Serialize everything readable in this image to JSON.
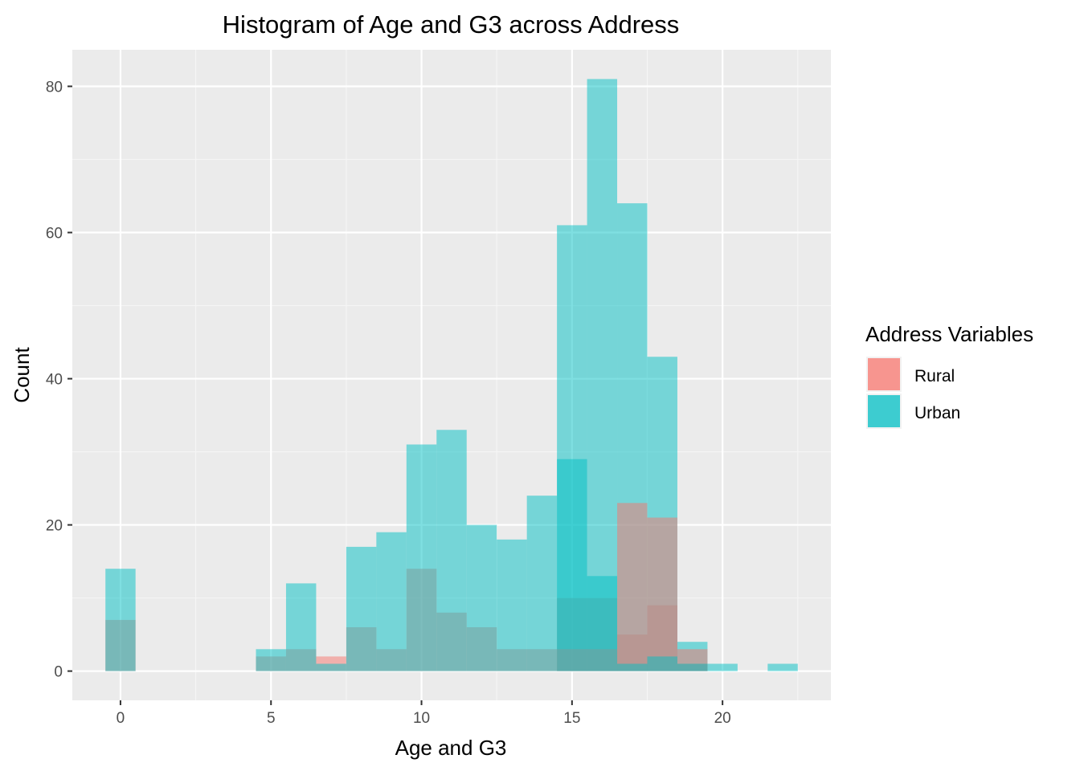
{
  "chart_data": {
    "type": "histogram",
    "title": "Histogram of Age and G3 across Address",
    "xlabel": "Age and G3",
    "ylabel": "Count",
    "bin_width": 1,
    "xlim": [
      -1.6,
      23.6
    ],
    "ylim": [
      -4,
      85
    ],
    "x_ticks": [
      0,
      5,
      10,
      15,
      20
    ],
    "y_ticks": [
      0,
      20,
      40,
      60,
      80
    ],
    "grid": true,
    "legend": {
      "title": "Address Variables",
      "position": "right"
    },
    "colors": {
      "panel_bg": "#EBEBEB",
      "grid_major": "#FFFFFF",
      "grid_minor": "#F5F5F5",
      "rural": "#F8766D",
      "urban": "#00BFC4"
    },
    "layers": [
      {
        "label": "Rural",
        "variable": "G3",
        "color": "#F8766D",
        "bins": [
          {
            "x": 0,
            "count": 7
          },
          {
            "x": 5,
            "count": 2
          },
          {
            "x": 6,
            "count": 3
          },
          {
            "x": 7,
            "count": 2
          },
          {
            "x": 8,
            "count": 6
          },
          {
            "x": 9,
            "count": 3
          },
          {
            "x": 10,
            "count": 14
          },
          {
            "x": 11,
            "count": 8
          },
          {
            "x": 12,
            "count": 6
          },
          {
            "x": 13,
            "count": 3
          },
          {
            "x": 14,
            "count": 3
          },
          {
            "x": 15,
            "count": 10
          },
          {
            "x": 16,
            "count": 10
          },
          {
            "x": 17,
            "count": 5
          },
          {
            "x": 18,
            "count": 9
          },
          {
            "x": 19,
            "count": 1
          }
        ]
      },
      {
        "label": "Urban",
        "variable": "G3",
        "color": "#00BFC4",
        "bins": [
          {
            "x": 0,
            "count": 14
          },
          {
            "x": 5,
            "count": 3
          },
          {
            "x": 6,
            "count": 12
          },
          {
            "x": 7,
            "count": 1
          },
          {
            "x": 8,
            "count": 17
          },
          {
            "x": 9,
            "count": 19
          },
          {
            "x": 10,
            "count": 31
          },
          {
            "x": 11,
            "count": 33
          },
          {
            "x": 12,
            "count": 20
          },
          {
            "x": 13,
            "count": 18
          },
          {
            "x": 14,
            "count": 24
          },
          {
            "x": 15,
            "count": 61
          },
          {
            "x": 16,
            "count": 81
          },
          {
            "x": 17,
            "count": 64
          },
          {
            "x": 18,
            "count": 43
          },
          {
            "x": 19,
            "count": 4
          },
          {
            "x": 20,
            "count": 1
          },
          {
            "x": 22,
            "count": 1
          }
        ]
      },
      {
        "label": "Rural",
        "variable": "Age",
        "color": "#F8766D",
        "bins": [
          {
            "x": 15,
            "count": 3
          },
          {
            "x": 16,
            "count": 3
          },
          {
            "x": 17,
            "count": 23
          },
          {
            "x": 18,
            "count": 21
          },
          {
            "x": 19,
            "count": 3
          }
        ]
      },
      {
        "label": "Urban",
        "variable": "Age",
        "color": "#00BFC4",
        "bins": [
          {
            "x": 15,
            "count": 29
          },
          {
            "x": 16,
            "count": 13
          },
          {
            "x": 17,
            "count": 1
          },
          {
            "x": 18,
            "count": 2
          },
          {
            "x": 19,
            "count": 1
          }
        ]
      }
    ]
  }
}
